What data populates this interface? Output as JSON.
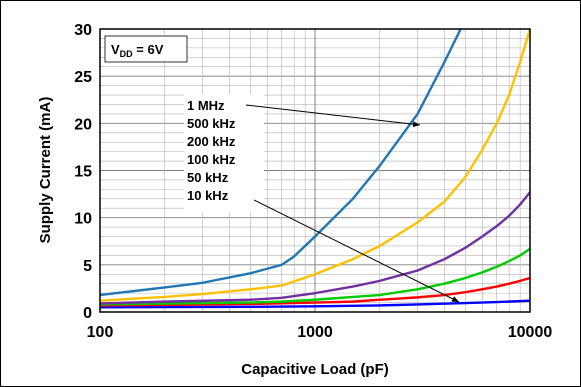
{
  "chart_data": {
    "type": "line",
    "xlabel": "Capacitive Load (pF)",
    "ylabel": "Supply Current (mA)",
    "xscale": "log",
    "xlim": [
      100,
      10000
    ],
    "ylim": [
      0,
      30
    ],
    "x_ticks": [
      "100",
      "1000",
      "10000"
    ],
    "y_ticks": [
      "0",
      "5",
      "10",
      "15",
      "20",
      "25",
      "30"
    ],
    "grid": true,
    "condition": {
      "main": "V",
      "sub": "DD",
      "rest": " = 6V"
    },
    "legend_labels": [
      "1 MHz",
      "500 kHz",
      "200 kHz",
      "100 kHz",
      "50 kHz",
      "10 kHz"
    ],
    "series": [
      {
        "name": "1 MHz",
        "color": "#1f77b4",
        "x": [
          100,
          200,
          300,
          500,
          700,
          800,
          1000,
          1500,
          2000,
          3000,
          4000,
          5000
        ],
        "y": [
          1.8,
          2.6,
          3.1,
          4.1,
          5.0,
          5.9,
          8.0,
          12.0,
          15.5,
          21.0,
          26.5,
          31
        ]
      },
      {
        "name": "500 kHz",
        "color": "#ffc000",
        "x": [
          100,
          200,
          300,
          500,
          700,
          1000,
          1500,
          2000,
          3000,
          4000,
          5000,
          6000,
          7000,
          8000,
          9000,
          10000
        ],
        "y": [
          1.2,
          1.6,
          1.9,
          2.4,
          2.8,
          4.0,
          5.6,
          7.0,
          9.5,
          11.7,
          14.3,
          17.2,
          20.0,
          23.0,
          26.5,
          30.0
        ]
      },
      {
        "name": "200 kHz",
        "color": "#7030a0",
        "x": [
          100,
          200,
          500,
          700,
          1000,
          1500,
          2000,
          3000,
          4000,
          5000,
          6000,
          7000,
          8000,
          9000,
          10000
        ],
        "y": [
          0.9,
          1.1,
          1.3,
          1.5,
          2.0,
          2.7,
          3.3,
          4.4,
          5.6,
          6.8,
          8.0,
          9.1,
          10.2,
          11.4,
          12.7
        ]
      },
      {
        "name": "100 kHz",
        "color": "#00cc00",
        "x": [
          100,
          200,
          500,
          700,
          1000,
          1500,
          2000,
          3000,
          4000,
          5000,
          6000,
          7000,
          8000,
          9000,
          10000
        ],
        "y": [
          0.8,
          0.9,
          1.0,
          1.1,
          1.3,
          1.6,
          1.8,
          2.4,
          3.0,
          3.6,
          4.2,
          4.8,
          5.4,
          6.0,
          6.7
        ]
      },
      {
        "name": "50 kHz",
        "color": "#ff0000",
        "x": [
          100,
          200,
          500,
          1000,
          1500,
          2000,
          3000,
          4000,
          5000,
          6000,
          7000,
          8000,
          9000,
          10000
        ],
        "y": [
          0.7,
          0.75,
          0.85,
          1.0,
          1.1,
          1.3,
          1.55,
          1.8,
          2.1,
          2.4,
          2.7,
          3.0,
          3.3,
          3.6
        ]
      },
      {
        "name": "10 kHz",
        "color": "#0000ff",
        "x": [
          100,
          500,
          1000,
          2000,
          3000,
          5000,
          7000,
          10000
        ],
        "y": [
          0.5,
          0.55,
          0.6,
          0.7,
          0.8,
          0.95,
          1.05,
          1.2
        ]
      }
    ]
  }
}
